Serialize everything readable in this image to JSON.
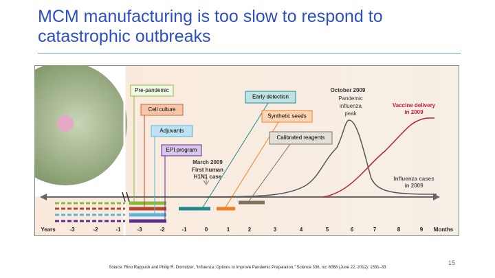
{
  "header": {
    "title": "MCM manufacturing is too slow to respond to catastrophic outbreaks"
  },
  "figure": {
    "boxes": [
      "Pre-pandemic",
      "Cell culture",
      "Adjuvants",
      "EPI program",
      "Early detection",
      "Synthetic seeds",
      "Calibrated reagents"
    ],
    "peak": [
      "October 2009",
      "Pandemic",
      "influenza",
      "peak"
    ],
    "vaccine": [
      "Vaccine delivery",
      "in 2009"
    ],
    "first_case": [
      "March 2009",
      "First human",
      "H1N1 case"
    ],
    "cases": [
      "Influenza cases",
      "in 2009"
    ],
    "axis": [
      "Years",
      "-3",
      "-2",
      "-1",
      "-3",
      "-2",
      "-1",
      "0",
      "1",
      "2",
      "3",
      "4",
      "5",
      "6",
      "7",
      "8",
      "9",
      "Months"
    ]
  },
  "footer": {
    "source": "Source: Rino Rappuoli and Philip R. Dormitzer, “Influenza: Options to Improve Pandemic Preparation,” Science 336, no. 6088 (June 22, 2012): 1531–33",
    "page": "15"
  }
}
